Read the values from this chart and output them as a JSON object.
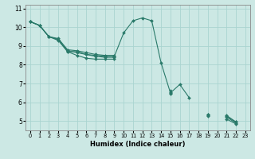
{
  "title": "",
  "xlabel": "Humidex (Indice chaleur)",
  "bg_color": "#cce8e4",
  "grid_color": "#aad4d0",
  "line_color": "#2a7a6a",
  "xlim": [
    -0.5,
    23.5
  ],
  "ylim": [
    4.5,
    11.2
  ],
  "xticks": [
    0,
    1,
    2,
    3,
    4,
    5,
    6,
    7,
    8,
    9,
    10,
    11,
    12,
    13,
    14,
    15,
    16,
    17,
    18,
    19,
    20,
    21,
    22,
    23
  ],
  "yticks": [
    5,
    6,
    7,
    8,
    9,
    10,
    11
  ],
  "series": [
    [
      10.3,
      10.1,
      9.5,
      9.35,
      8.7,
      8.7,
      8.55,
      8.5,
      8.45,
      8.45,
      9.7,
      10.35,
      10.5,
      10.35,
      8.1,
      6.5,
      6.95,
      6.25,
      null,
      5.35,
      null,
      5.3,
      4.95,
      null
    ],
    [
      10.3,
      10.1,
      9.5,
      9.3,
      8.7,
      8.5,
      8.35,
      8.3,
      8.3,
      8.3,
      null,
      null,
      null,
      null,
      null,
      6.45,
      null,
      null,
      null,
      5.25,
      null,
      5.1,
      4.85,
      null
    ],
    [
      10.3,
      10.1,
      9.5,
      9.35,
      8.75,
      8.65,
      8.55,
      8.45,
      8.4,
      8.4,
      null,
      null,
      null,
      null,
      null,
      6.55,
      null,
      null,
      null,
      5.3,
      null,
      5.2,
      4.9,
      null
    ],
    [
      10.3,
      10.1,
      9.5,
      9.4,
      8.8,
      8.75,
      8.65,
      8.55,
      8.5,
      8.5,
      null,
      null,
      null,
      null,
      null,
      6.6,
      null,
      null,
      null,
      5.35,
      null,
      5.25,
      4.95,
      null
    ]
  ]
}
